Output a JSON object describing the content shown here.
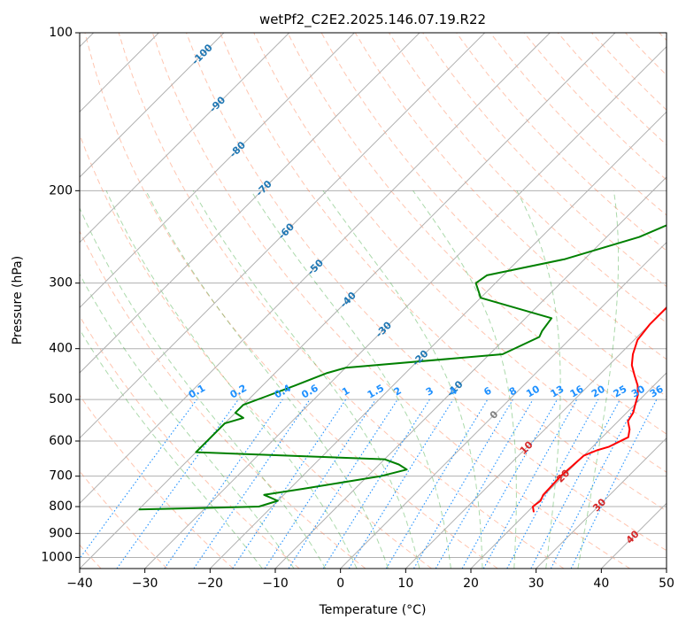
{
  "chart_data": {
    "type": "line",
    "title": "wetPf2_C2E2.2025.146.07.19.R22",
    "xlabel": "Temperature (°C)",
    "ylabel": "Pressure (hPa)",
    "xlim": [
      -40,
      50
    ],
    "ylim": [
      1050,
      100
    ],
    "y_scale": "log",
    "grid": true,
    "x_ticks": [
      -40,
      -30,
      -20,
      -10,
      0,
      10,
      20,
      30,
      40,
      50
    ],
    "x_tick_labels": [
      "−40",
      "−30",
      "−20",
      "−10",
      "0",
      "10",
      "20",
      "30",
      "40",
      "50"
    ],
    "y_ticks": [
      100,
      200,
      300,
      400,
      500,
      600,
      700,
      800,
      900,
      1000
    ],
    "y_tick_labels": [
      "100",
      "200",
      "300",
      "400",
      "500",
      "600",
      "700",
      "800",
      "900",
      "1000"
    ],
    "skew_deg": 45,
    "series": [
      {
        "color": "#ff0000",
        "points": [
          [
            21,
            820
          ],
          [
            20,
            800
          ],
          [
            20.3,
            780
          ],
          [
            19.8,
            760
          ],
          [
            19.6,
            700
          ],
          [
            20,
            640
          ],
          [
            21.2,
            625
          ],
          [
            22.5,
            615
          ],
          [
            24,
            590
          ],
          [
            23,
            570
          ],
          [
            21.5,
            550
          ],
          [
            21,
            530
          ],
          [
            20,
            510
          ],
          [
            19,
            490
          ],
          [
            17.5,
            470
          ],
          [
            15.5,
            450
          ],
          [
            13.5,
            430
          ],
          [
            12,
            410
          ],
          [
            10.5,
            385
          ],
          [
            10,
            360
          ],
          [
            10,
            335
          ],
          [
            9.8,
            310
          ],
          [
            9.6,
            285
          ],
          [
            8.9,
            265
          ],
          [
            7.8,
            245
          ],
          [
            5.8,
            220
          ],
          [
            4.8,
            200
          ],
          [
            5,
            180
          ],
          [
            3.5,
            160
          ],
          [
            2.2,
            145
          ],
          [
            1.5,
            135
          ],
          [
            2.5,
            128
          ],
          [
            6,
            120
          ],
          [
            7.5,
            114
          ],
          [
            8,
            108
          ],
          [
            9,
            102
          ],
          [
            9.5,
            100
          ]
        ]
      },
      {
        "color": "#008000",
        "points": [
          [
            -40,
            810
          ],
          [
            -34,
            807
          ],
          [
            -22,
            800
          ],
          [
            -20,
            780
          ],
          [
            -23,
            760
          ],
          [
            -18,
            740
          ],
          [
            -8,
            700
          ],
          [
            -5,
            680
          ],
          [
            -7,
            665
          ],
          [
            -10,
            650
          ],
          [
            -40,
            630
          ],
          [
            -40,
            555
          ],
          [
            -38,
            542
          ],
          [
            -40,
            530
          ],
          [
            -40,
            512
          ],
          [
            -38,
            495
          ],
          [
            -35,
            470
          ],
          [
            -32,
            445
          ],
          [
            -30,
            435
          ],
          [
            -8,
            410
          ],
          [
            -5,
            380
          ],
          [
            -5.5,
            370
          ],
          [
            -6,
            350
          ],
          [
            -20,
            320
          ],
          [
            -23,
            300
          ],
          [
            -22.5,
            290
          ],
          [
            -13,
            270
          ],
          [
            -5,
            245
          ],
          [
            0,
            220
          ],
          [
            1,
            205
          ],
          [
            0,
            195
          ],
          [
            -2.5,
            185
          ],
          [
            -3.5,
            175
          ],
          [
            -3,
            165
          ],
          [
            -2.5,
            155
          ],
          [
            -2,
            145
          ],
          [
            -1.5,
            135
          ],
          [
            -1,
            125
          ],
          [
            0,
            115
          ],
          [
            1.5,
            105
          ],
          [
            1.5,
            100
          ]
        ]
      }
    ],
    "dry_adiabats_theta_C": [
      -40,
      -30,
      -20,
      -10,
      0,
      10,
      20,
      30,
      40,
      50,
      60,
      70,
      80,
      90,
      100,
      110,
      120,
      130,
      140,
      150,
      160,
      170,
      180,
      190,
      200
    ],
    "moist_adiabats_start_C": [
      -15,
      -10,
      -5,
      0,
      5,
      10,
      15,
      20,
      25,
      30,
      35
    ],
    "isotherm_labels": [
      {
        "t": -100,
        "text": "-100",
        "p": 110
      },
      {
        "t": -90,
        "text": "-90",
        "p": 137
      },
      {
        "t": -80,
        "text": "-80",
        "p": 167
      },
      {
        "t": -70,
        "text": "-70",
        "p": 198
      },
      {
        "t": -60,
        "text": "-60",
        "p": 239
      },
      {
        "t": -50,
        "text": "-50",
        "p": 280
      },
      {
        "t": -40,
        "text": "-40",
        "p": 323
      },
      {
        "t": -30,
        "text": "-30",
        "p": 368
      },
      {
        "t": -20,
        "text": "-20",
        "p": 417
      },
      {
        "t": -10,
        "text": "-10",
        "p": 477
      },
      {
        "t": 0,
        "text": "0",
        "p": 535
      },
      {
        "t": 10,
        "text": "10",
        "p": 618
      },
      {
        "t": 20,
        "text": "20",
        "p": 700
      },
      {
        "t": 30,
        "text": "30",
        "p": 795
      },
      {
        "t": 40,
        "text": "40",
        "p": 915
      }
    ],
    "mixing_ratios": [
      0.1,
      0.2,
      0.4,
      0.6,
      1,
      1.5,
      2,
      3,
      4,
      6,
      8,
      10,
      13,
      16,
      20,
      25,
      30,
      36
    ],
    "mixing_ratio_labels": [
      "0.1",
      "0.2",
      "0.4",
      "0.6",
      "1",
      "1.5",
      "2",
      "3",
      "4",
      "6",
      "8",
      "10",
      "13",
      "16",
      "20",
      "25",
      "30",
      "36"
    ],
    "colors": {
      "isotherm": "#1f77b4",
      "isotherm_zero": "#808080",
      "isotherm_warm": "#d62728",
      "mixing_ratio": "#1e90ff",
      "dry_adiabat": "#ff7f50",
      "moist_adiabat": "#2ca02c",
      "grid": "#b0b0b0"
    }
  }
}
